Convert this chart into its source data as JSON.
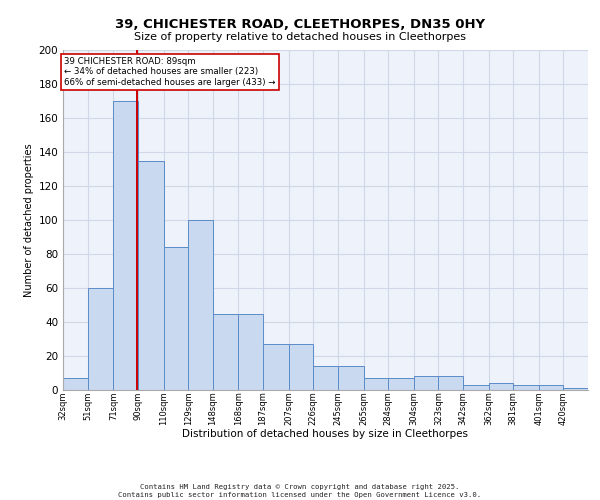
{
  "title1": "39, CHICHESTER ROAD, CLEETHORPES, DN35 0HY",
  "title2": "Size of property relative to detached houses in Cleethorpes",
  "xlabel": "Distribution of detached houses by size in Cleethorpes",
  "ylabel": "Number of detached properties",
  "bin_labels": [
    "32sqm",
    "51sqm",
    "71sqm",
    "90sqm",
    "110sqm",
    "129sqm",
    "148sqm",
    "168sqm",
    "187sqm",
    "207sqm",
    "226sqm",
    "245sqm",
    "265sqm",
    "284sqm",
    "304sqm",
    "323sqm",
    "342sqm",
    "362sqm",
    "381sqm",
    "401sqm",
    "420sqm"
  ],
  "bin_edges": [
    32,
    51,
    71,
    90,
    110,
    129,
    148,
    168,
    187,
    207,
    226,
    245,
    265,
    284,
    304,
    323,
    342,
    362,
    381,
    401,
    420
  ],
  "bar_heights": [
    7,
    60,
    170,
    135,
    84,
    100,
    45,
    45,
    27,
    27,
    14,
    14,
    7,
    7,
    8,
    8,
    3,
    4,
    3,
    3,
    1
  ],
  "bar_color": "#c9d9f0",
  "bar_edge_color": "#5b8cc8",
  "grid_color": "#d0d8e8",
  "background_color": "#eef2fa",
  "red_line_x": 89,
  "annotation_line1": "39 CHICHESTER ROAD: 89sqm",
  "annotation_line2": "← 34% of detached houses are smaller (223)",
  "annotation_line3": "66% of semi-detached houses are larger (433) →",
  "annotation_border_color": "#cc0000",
  "footer_text": "Contains HM Land Registry data © Crown copyright and database right 2025.\nContains public sector information licensed under the Open Government Licence v3.0.",
  "ylim": [
    0,
    200
  ],
  "yticks": [
    0,
    20,
    40,
    60,
    80,
    100,
    120,
    140,
    160,
    180,
    200
  ]
}
